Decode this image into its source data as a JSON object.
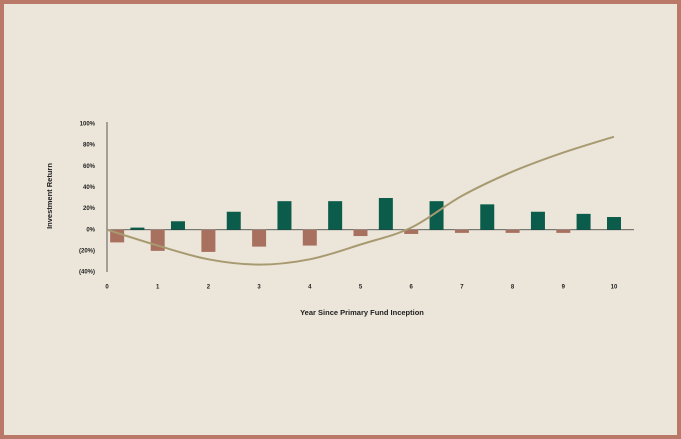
{
  "chart_data": {
    "type": "bar",
    "x_label": "Year Since Primary Fund Inception",
    "y_label": "Investment Return",
    "xlim": [
      0,
      10
    ],
    "xticks": [
      0,
      1,
      2,
      3,
      4,
      5,
      6,
      7,
      8,
      9,
      10
    ],
    "ylim": [
      -40,
      100
    ],
    "yticks": [
      {
        "value": 100,
        "label": "100%"
      },
      {
        "value": 80,
        "label": "80%"
      },
      {
        "value": 60,
        "label": "60%"
      },
      {
        "value": 40,
        "label": "40%"
      },
      {
        "value": 20,
        "label": "20%"
      },
      {
        "value": 0,
        "label": "0%"
      },
      {
        "value": -20,
        "label": "(20%)"
      },
      {
        "value": -40,
        "label": "(40%)"
      }
    ],
    "series": [
      {
        "type": "bar",
        "color": "#0b5c4b",
        "x": [
          0.6,
          1.4,
          2.5,
          3.5,
          4.5,
          5.5,
          6.5,
          7.5,
          8.5,
          9.4,
          10.0
        ],
        "values": [
          2,
          8,
          17,
          27,
          27,
          30,
          27,
          24,
          17,
          15,
          12
        ]
      },
      {
        "type": "bar",
        "color": "#a8705f",
        "x": [
          0.2,
          1.0,
          2.0,
          3.0,
          4.0,
          5.0,
          6.0,
          7.0,
          8.0,
          9.0
        ],
        "values": [
          -12,
          -20,
          -21,
          -16,
          -15,
          -6,
          -4,
          -3,
          -3,
          -3
        ]
      },
      {
        "type": "line",
        "color": "#a89a70",
        "x": [
          0,
          1,
          2,
          3,
          4,
          5,
          6,
          7,
          8,
          9,
          10
        ],
        "values": [
          0,
          -15,
          -28,
          -33,
          -28,
          -14,
          2,
          32,
          55,
          73,
          88
        ]
      }
    ]
  }
}
